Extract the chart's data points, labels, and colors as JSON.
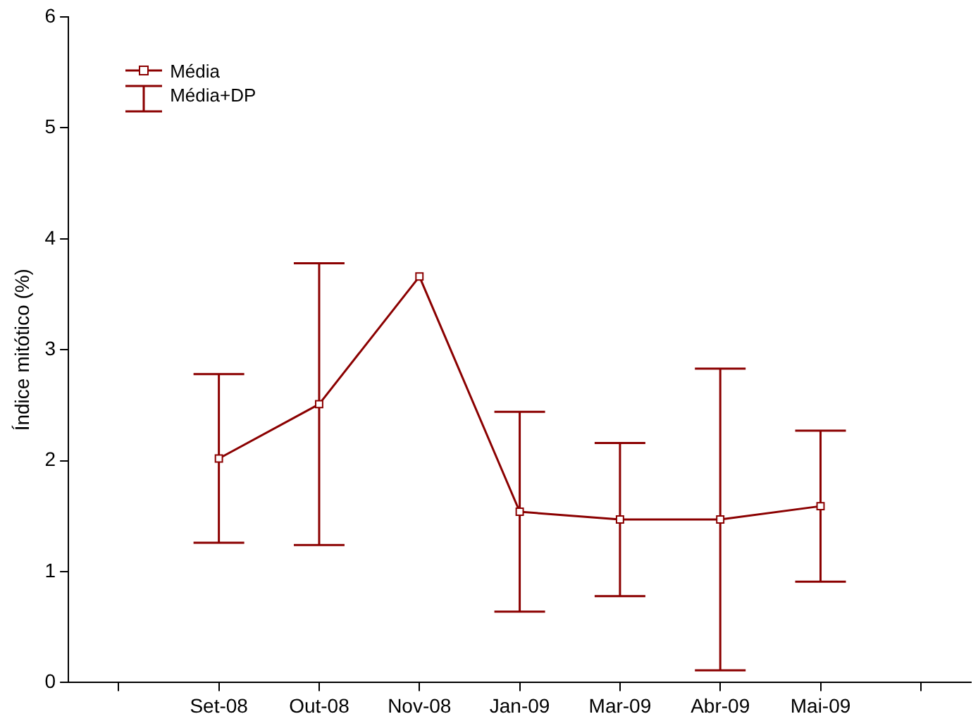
{
  "chart_data": {
    "type": "line",
    "ylabel": "Índice mitótico (%)",
    "categories": [
      null,
      "Set-08",
      "Out-08",
      "Nov-08",
      "Jan-09",
      "Mar-09",
      "Abr-09",
      "Mai-09",
      null
    ],
    "series": [
      {
        "name": "Média",
        "color": "#8b0000",
        "values": [
          null,
          2.02,
          2.51,
          3.66,
          1.54,
          1.47,
          1.47,
          1.59,
          null
        ],
        "errors": [
          null,
          0.76,
          1.27,
          null,
          0.9,
          0.69,
          1.36,
          0.68,
          null
        ]
      }
    ],
    "annotations": [
      "Média+DP"
    ],
    "ylim": [
      0,
      6
    ],
    "yticks": [
      0,
      1,
      2,
      3,
      4,
      5,
      6
    ],
    "grid": false,
    "legend": "top left",
    "marker": "square",
    "line_style": "solid"
  }
}
